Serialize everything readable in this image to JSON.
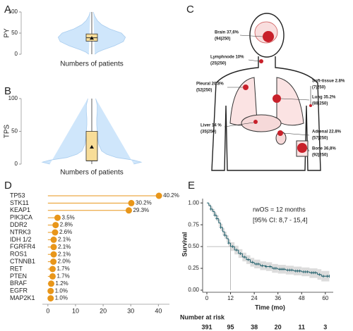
{
  "chart_data": [
    {
      "panel": "A",
      "type": "violin",
      "ylabel": "PY",
      "xlabel": "Numbers of patients",
      "ylim": [
        0,
        100
      ],
      "yticks": [
        0,
        50,
        100
      ],
      "color": "#cfe6fb",
      "box_color": "#f8dd98",
      "density": {
        "y": [
          0,
          5,
          10,
          20,
          30,
          40,
          50,
          60,
          70,
          80,
          90,
          100
        ],
        "width": [
          0.06,
          0.12,
          0.22,
          0.46,
          0.64,
          0.68,
          0.6,
          0.36,
          0.2,
          0.11,
          0.06,
          0.03
        ]
      },
      "box": {
        "whisker_low": 0,
        "q1": 31,
        "median": 39,
        "q3": 48,
        "whisker_high": 100,
        "mean": 38
      }
    },
    {
      "panel": "B",
      "type": "violin",
      "ylabel": "TPS",
      "xlabel": "Numbers of patients",
      "ylim": [
        0,
        100
      ],
      "yticks": [
        0,
        50,
        100
      ],
      "color": "#cfe6fb",
      "box_color": "#f8dd98",
      "density": {
        "y": [
          0,
          3,
          6,
          10,
          15,
          20,
          30,
          40,
          50,
          60,
          70,
          80,
          90,
          100
        ],
        "width": [
          0.85,
          1.0,
          0.85,
          0.5,
          0.3,
          0.2,
          0.14,
          0.12,
          0.11,
          0.1,
          0.1,
          0.11,
          0.11,
          0.08
        ]
      },
      "box": {
        "whisker_low": 0,
        "q1": 5,
        "median": 5,
        "q3": 50,
        "whisker_high": 100,
        "mean": 26
      }
    },
    {
      "panel": "D",
      "type": "lollipop",
      "color": "#e8961a",
      "categories": [
        "TP53",
        "STK11",
        "KEAP1",
        "PIK3CA",
        "DDR2",
        "NTRK3",
        "IDH 1/2",
        "FGRFR4",
        "ROS1",
        "CTNNB1",
        "RET",
        "PTEN",
        "BRAF",
        "EGFR",
        "MAP2K1"
      ],
      "values": [
        40.2,
        30.2,
        29.3,
        3.5,
        2.8,
        2.6,
        2.1,
        2.1,
        2.1,
        2.0,
        1.7,
        1.7,
        1.2,
        1.0,
        1.0
      ],
      "value_labels": [
        "40.2%",
        "30.2%",
        "29.3%",
        "3.5%",
        "2.8%",
        "2.6%",
        "2.1%",
        "2.1%",
        "2.1%",
        "2.0%",
        "1.7%",
        "1.7%",
        "1.2%",
        "1.0%",
        "1.0%"
      ],
      "xlim": [
        -2,
        44
      ],
      "xticks": [
        0,
        10,
        20,
        30,
        40
      ]
    },
    {
      "panel": "E",
      "type": "survival",
      "color": "#1f5f6b",
      "band_color": "#dcdcdc",
      "xlabel": "Time (mo)",
      "ylabel": "Survival",
      "x": [
        0,
        1,
        2,
        3,
        4,
        5,
        6,
        7,
        8,
        9,
        10,
        11,
        12,
        14,
        16,
        18,
        20,
        22,
        24,
        27,
        30,
        33,
        36,
        40,
        44,
        48,
        52,
        56,
        58,
        62
      ],
      "values": [
        1,
        0.97,
        0.93,
        0.9,
        0.86,
        0.82,
        0.77,
        0.72,
        0.67,
        0.63,
        0.59,
        0.54,
        0.5,
        0.46,
        0.42,
        0.38,
        0.35,
        0.32,
        0.3,
        0.28,
        0.27,
        0.25,
        0.24,
        0.23,
        0.22,
        0.21,
        0.2,
        0.18,
        0.16,
        0.16
      ],
      "lower": [
        1,
        0.95,
        0.9,
        0.87,
        0.83,
        0.79,
        0.73,
        0.68,
        0.63,
        0.59,
        0.55,
        0.5,
        0.45,
        0.41,
        0.37,
        0.33,
        0.3,
        0.27,
        0.25,
        0.23,
        0.22,
        0.2,
        0.19,
        0.18,
        0.17,
        0.16,
        0.14,
        0.12,
        0.1,
        0.1
      ],
      "upper": [
        1,
        0.99,
        0.96,
        0.93,
        0.89,
        0.86,
        0.81,
        0.76,
        0.71,
        0.67,
        0.63,
        0.58,
        0.55,
        0.51,
        0.47,
        0.43,
        0.4,
        0.37,
        0.35,
        0.33,
        0.32,
        0.3,
        0.29,
        0.28,
        0.27,
        0.26,
        0.25,
        0.24,
        0.22,
        0.22
      ],
      "censored": [
        2,
        4,
        5,
        7,
        9,
        11,
        13,
        15,
        17,
        19,
        21,
        23,
        25,
        26,
        28,
        30,
        32,
        34,
        35,
        37,
        38,
        39,
        41,
        42,
        43,
        45,
        46,
        47,
        49,
        50,
        51,
        53,
        54,
        55,
        57,
        59,
        61
      ],
      "xlim": [
        0,
        64
      ],
      "ylim": [
        0,
        1.05
      ],
      "xticks": [
        0,
        12,
        24,
        36,
        48,
        60
      ],
      "yticks": [
        {
          "value": 0,
          "label": "0.00"
        },
        {
          "value": 0.25,
          "label": "0.25"
        },
        {
          "value": 0.5,
          "label": "0.50"
        },
        {
          "value": 0.75,
          "label": "0.75"
        },
        {
          "value": 1,
          "label": "1.00"
        }
      ],
      "reference": {
        "x": 12,
        "y": 0.5
      },
      "annotation": [
        "rwOS = 12 months",
        "[95% CI: 8,7 - 15,4]"
      ],
      "risk_table": {
        "title": "Number at risk",
        "values": [
          391,
          95,
          38,
          20,
          11,
          3
        ]
      }
    }
  ],
  "body_map": {
    "panel": "C",
    "sites": [
      {
        "label": "Brain 37,6%",
        "count": "(94|250)"
      },
      {
        "label": "Lymphnode 10%",
        "count": "(25|250)"
      },
      {
        "label": "Soft-tissue 2.8%",
        "count": "(7|250)"
      },
      {
        "label": "Pleural 20.8%",
        "count": "(52|250)"
      },
      {
        "label": "Lung 35.2%",
        "count": "(88|250)"
      },
      {
        "label": "Liver 14 %",
        "count": "(35|250)"
      },
      {
        "label": "Adrenal 22.8%",
        "count": "(57|250)"
      },
      {
        "label": "Bone 36,8%",
        "count": "(92|250)"
      }
    ]
  }
}
